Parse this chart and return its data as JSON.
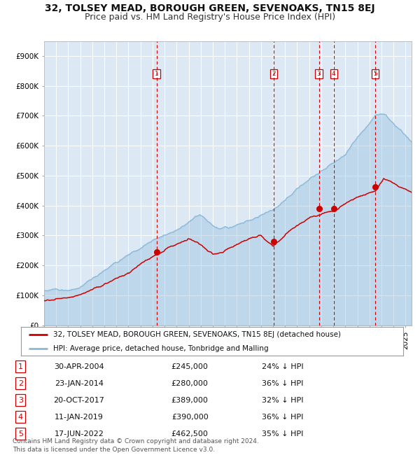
{
  "title": "32, TOLSEY MEAD, BOROUGH GREEN, SEVENOAKS, TN15 8EJ",
  "subtitle": "Price paid vs. HM Land Registry's House Price Index (HPI)",
  "ylim": [
    0,
    950000
  ],
  "yticks": [
    0,
    100000,
    200000,
    300000,
    400000,
    500000,
    600000,
    700000,
    800000,
    900000
  ],
  "ytick_labels": [
    "£0",
    "£100K",
    "£200K",
    "£300K",
    "£400K",
    "£500K",
    "£600K",
    "£700K",
    "£800K",
    "£900K"
  ],
  "xlim_start": 1995.0,
  "xlim_end": 2025.5,
  "bg_color": "#dce9f5",
  "grid_color": "#ffffff",
  "hpi_color": "#89b8d8",
  "hpi_fill_alpha": 0.35,
  "price_color": "#cc0000",
  "vline_color": "#cc0000",
  "transactions": [
    {
      "num": 1,
      "date_x": 2004.33,
      "price": 245000,
      "label": "30-APR-2004",
      "pct": "24% ↓ HPI"
    },
    {
      "num": 2,
      "date_x": 2014.07,
      "price": 280000,
      "label": "23-JAN-2014",
      "pct": "36% ↓ HPI"
    },
    {
      "num": 3,
      "date_x": 2017.81,
      "price": 389000,
      "label": "20-OCT-2017",
      "pct": "32% ↓ HPI"
    },
    {
      "num": 4,
      "date_x": 2019.03,
      "price": 390000,
      "label": "11-JAN-2019",
      "pct": "36% ↓ HPI"
    },
    {
      "num": 5,
      "date_x": 2022.46,
      "price": 462500,
      "label": "17-JUN-2022",
      "pct": "35% ↓ HPI"
    }
  ],
  "legend_entries": [
    "32, TOLSEY MEAD, BOROUGH GREEN, SEVENOAKS, TN15 8EJ (detached house)",
    "HPI: Average price, detached house, Tonbridge and Malling"
  ],
  "footer": "Contains HM Land Registry data © Crown copyright and database right 2024.\nThis data is licensed under the Open Government Licence v3.0.",
  "title_fontsize": 10,
  "subtitle_fontsize": 9,
  "tick_fontsize": 7.5,
  "legend_fontsize": 7.5,
  "table_fontsize": 8,
  "footer_fontsize": 6.5
}
